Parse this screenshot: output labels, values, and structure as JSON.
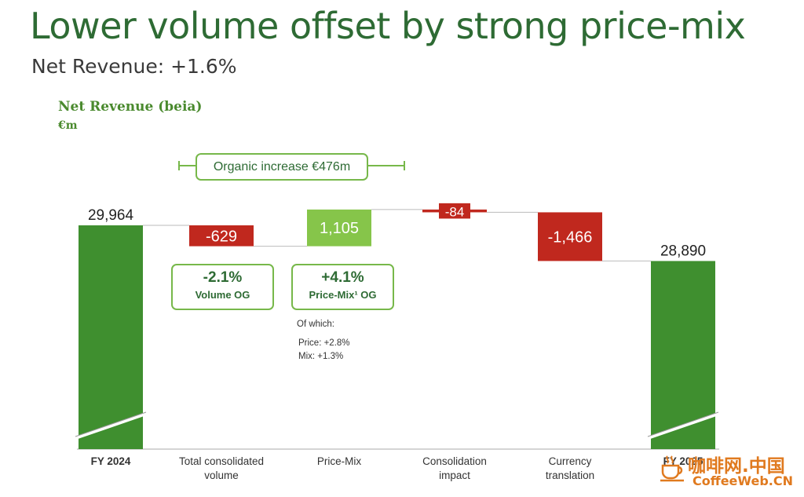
{
  "header": {
    "title": "Lower volume offset by strong price-mix",
    "subtitle": "Net Revenue: +1.6%"
  },
  "chart_data": {
    "type": "waterfall",
    "title": "Net Revenue (beia)",
    "unit": "€m",
    "categories": [
      "FY 2024",
      "Total consolidated volume",
      "Price-Mix",
      "Consolidation impact",
      "Currency translation",
      "FY 2025"
    ],
    "category_lines": [
      [
        "FY 2024"
      ],
      [
        "Total consolidated",
        "volume"
      ],
      [
        "Price-Mix"
      ],
      [
        "Consolidation",
        "impact"
      ],
      [
        "Currency",
        "translation"
      ],
      [
        "FY 2025"
      ]
    ],
    "values": [
      29964,
      -629,
      1105,
      -84,
      -1466,
      28890
    ],
    "value_labels": [
      "29,964",
      "-629",
      "1,105",
      "-84",
      "-1,466",
      "28,890"
    ],
    "measures": [
      "total",
      "relative",
      "relative",
      "relative",
      "relative",
      "total"
    ],
    "colors": {
      "total": "#3f8f2f",
      "increase": "#86c54a",
      "decrease": "#c0281e"
    },
    "organic_increase": "Organic increase €476m",
    "og_boxes": [
      {
        "pct": "-2.1%",
        "label": "Volume OG"
      },
      {
        "pct": "+4.1%",
        "label": "Price-Mix¹ OG"
      }
    ],
    "price_mix_breakdown": {
      "heading": "Of which:",
      "lines": [
        "Price: +2.8%",
        "Mix: +1.3%"
      ]
    }
  },
  "watermark": {
    "cn": "咖啡网.中国",
    "en": "CoffeeWeb.CN"
  }
}
